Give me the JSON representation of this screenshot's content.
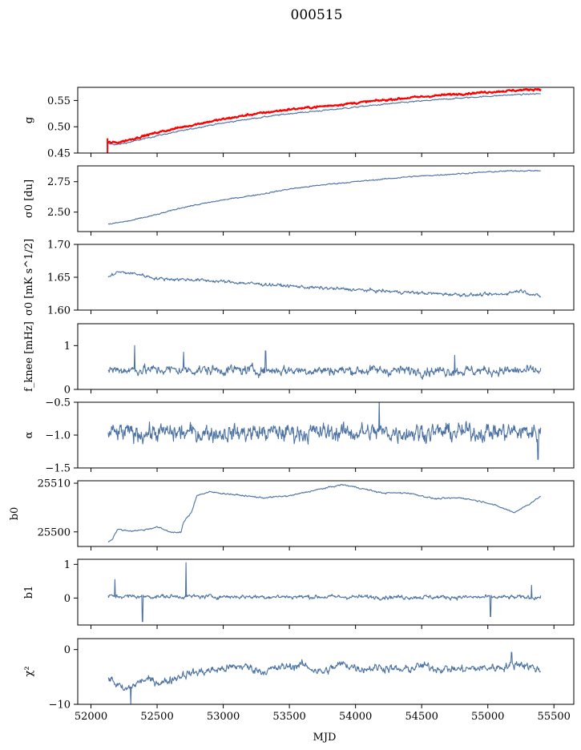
{
  "title": "000515",
  "xlabel": "MJD",
  "colors": {
    "series": "#4c72a4",
    "overlay": "#ff0000",
    "frame": "#000000"
  },
  "x_ticks": [
    "52000",
    "52500",
    "53000",
    "53500",
    "54000",
    "54500",
    "55000",
    "55500"
  ],
  "chart_data": [
    {
      "id": "g",
      "type": "line",
      "ylabel": "g",
      "xlim": [
        51900,
        55650
      ],
      "ylim": [
        0.45,
        0.575
      ],
      "yticks": [
        0.45,
        0.5,
        0.55
      ],
      "ytick_labels": [
        "0.45",
        "0.50",
        "0.55"
      ],
      "series": [
        {
          "color": "#4c72a4",
          "x": [
            52120,
            52200,
            52300,
            52500,
            52700,
            52900,
            53200,
            53500,
            53800,
            54100,
            54400,
            54700,
            55000,
            55200,
            55400
          ],
          "y": [
            0.468,
            0.466,
            0.471,
            0.483,
            0.493,
            0.503,
            0.515,
            0.525,
            0.532,
            0.54,
            0.547,
            0.553,
            0.558,
            0.561,
            0.563
          ],
          "noise": 0.001
        },
        {
          "color": "#ff0000",
          "x": [
            52120,
            52200,
            52300,
            52500,
            52700,
            52900,
            53200,
            53500,
            53800,
            54100,
            54400,
            54700,
            55000,
            55200,
            55400
          ],
          "y": [
            0.47,
            0.47,
            0.476,
            0.489,
            0.5,
            0.51,
            0.523,
            0.533,
            0.54,
            0.548,
            0.555,
            0.561,
            0.566,
            0.569,
            0.572
          ],
          "noise": 0.0015,
          "spike": {
            "x": 52125,
            "y_low": 0.45,
            "y_high": 0.478
          }
        }
      ]
    },
    {
      "id": "sigma0_du",
      "type": "line",
      "ylabel": "σ0 [du]",
      "xlim": [
        51900,
        55650
      ],
      "ylim": [
        2.34,
        2.88
      ],
      "yticks": [
        2.5,
        2.75
      ],
      "ytick_labels": [
        "2.50",
        "2.75"
      ],
      "series": [
        {
          "color": "#4c72a4",
          "x": [
            52130,
            52300,
            52500,
            52700,
            53000,
            53300,
            53500,
            53800,
            54100,
            54400,
            54700,
            55000,
            55200,
            55400
          ],
          "y": [
            2.4,
            2.43,
            2.48,
            2.54,
            2.6,
            2.65,
            2.69,
            2.73,
            2.76,
            2.79,
            2.81,
            2.83,
            2.84,
            2.84
          ],
          "noise": 0.004
        }
      ]
    },
    {
      "id": "sigma0_mk",
      "type": "line",
      "ylabel": "σ0 [mK s^1/2]",
      "xlim": [
        51900,
        55650
      ],
      "ylim": [
        1.6,
        1.7
      ],
      "yticks": [
        1.6,
        1.65,
        1.7
      ],
      "ytick_labels": [
        "1.60",
        "1.65",
        "1.70"
      ],
      "series": [
        {
          "color": "#4c72a4",
          "x": [
            52130,
            52200,
            52350,
            52500,
            52800,
            53100,
            53400,
            53700,
            54000,
            54300,
            54600,
            54900,
            55100,
            55250,
            55400
          ],
          "y": [
            1.65,
            1.658,
            1.655,
            1.648,
            1.646,
            1.642,
            1.638,
            1.634,
            1.631,
            1.628,
            1.625,
            1.623,
            1.624,
            1.63,
            1.62
          ],
          "noise": 0.002
        }
      ]
    },
    {
      "id": "fknee",
      "type": "line",
      "ylabel": "f_knee [mHz]",
      "xlim": [
        51900,
        55650
      ],
      "ylim": [
        0,
        1.5
      ],
      "yticks": [
        0,
        1
      ],
      "ytick_labels": [
        "0",
        "1"
      ],
      "series": [
        {
          "color": "#4c72a4",
          "x": [
            52130,
            55400
          ],
          "y": [
            0.45,
            0.42
          ],
          "noise": 0.09,
          "spikes": [
            [
              52330,
              1.0
            ],
            [
              53320,
              0.88
            ],
            [
              52700,
              0.85
            ],
            [
              54750,
              0.78
            ]
          ]
        }
      ]
    },
    {
      "id": "alpha",
      "type": "line",
      "ylabel": "α",
      "xlim": [
        51900,
        55650
      ],
      "ylim": [
        -1.5,
        -0.5
      ],
      "yticks": [
        -1.5,
        -1.0,
        -0.5
      ],
      "ytick_labels": [
        "−1.5",
        "−1.0",
        "−0.5"
      ],
      "series": [
        {
          "color": "#4c72a4",
          "x": [
            52130,
            55400
          ],
          "y": [
            -0.97,
            -0.95
          ],
          "noise": 0.11,
          "spikes": [
            [
              54180,
              -0.48
            ],
            [
              55380,
              -1.37
            ]
          ]
        }
      ]
    },
    {
      "id": "b0",
      "type": "line",
      "ylabel": "b0",
      "xlim": [
        51900,
        55650
      ],
      "ylim": [
        25497,
        25510.5
      ],
      "yticks": [
        25500,
        25510
      ],
      "ytick_labels": [
        "25500",
        "25510"
      ],
      "series": [
        {
          "color": "#4c72a4",
          "x": [
            52130,
            52160,
            52200,
            52300,
            52400,
            52500,
            52600,
            52680,
            52700,
            52760,
            52800,
            52900,
            53100,
            53300,
            53500,
            53700,
            53900,
            54000,
            54200,
            54400,
            54600,
            54800,
            55000,
            55100,
            55200,
            55300,
            55400
          ],
          "y": [
            25498,
            25498.5,
            25500.5,
            25500.2,
            25500.4,
            25501,
            25500,
            25499.8,
            25502,
            25504,
            25507.5,
            25508.2,
            25507.6,
            25507,
            25507.4,
            25508.6,
            25509.7,
            25509.2,
            25508,
            25508,
            25506.8,
            25507,
            25506,
            25505,
            25504,
            25505.5,
            25507.3
          ],
          "noise": 0.12
        }
      ]
    },
    {
      "id": "b1",
      "type": "line",
      "ylabel": "b1",
      "xlim": [
        51900,
        55650
      ],
      "ylim": [
        -0.8,
        1.15
      ],
      "yticks": [
        0,
        1
      ],
      "ytick_labels": [
        "0",
        "1"
      ],
      "series": [
        {
          "color": "#4c72a4",
          "x": [
            52130,
            55400
          ],
          "y": [
            0.05,
            0.02
          ],
          "noise": 0.05,
          "spikes": [
            [
              52720,
              1.05
            ],
            [
              52390,
              -0.7
            ],
            [
              52180,
              0.55
            ],
            [
              55020,
              -0.55
            ],
            [
              55330,
              0.38
            ]
          ]
        }
      ]
    },
    {
      "id": "chi2",
      "type": "line",
      "ylabel": "χ²",
      "xlim": [
        51900,
        55650
      ],
      "ylim": [
        -10,
        2
      ],
      "yticks": [
        -10,
        0
      ],
      "ytick_labels": [
        "−10",
        "0"
      ],
      "series": [
        {
          "color": "#4c72a4",
          "x": [
            52130,
            52250,
            52400,
            52550,
            52700,
            52850,
            53000,
            53150,
            53300,
            53450,
            53600,
            53750,
            53900,
            54050,
            54200,
            54350,
            54500,
            54650,
            54800,
            54950,
            55100,
            55250,
            55400
          ],
          "y": [
            -5,
            -7.5,
            -5.5,
            -6,
            -4.5,
            -4,
            -3.5,
            -3,
            -4,
            -3.2,
            -2.8,
            -4.2,
            -2.6,
            -3.5,
            -3.2,
            -3.8,
            -3,
            -3.5,
            -3.6,
            -3.4,
            -3.2,
            -2.5,
            -3.8
          ],
          "noise": 0.6,
          "spikes": [
            [
              52300,
              -10
            ],
            [
              55180,
              -0.5
            ]
          ]
        }
      ]
    }
  ]
}
